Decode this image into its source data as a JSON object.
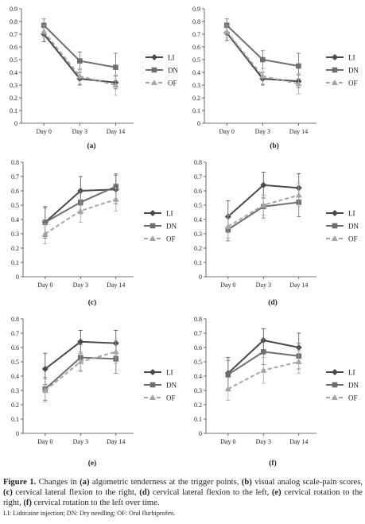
{
  "chart_data": [
    {
      "type": "line",
      "panel_label": "(a)",
      "categories": [
        "Day 0",
        "Day 3",
        "Day 14"
      ],
      "yticks": [
        "0",
        "0.1",
        "0.2",
        "0.3",
        "0.4",
        "0.5",
        "0.6",
        "0.7",
        "0.8",
        "0.9"
      ],
      "ylim": [
        0,
        0.9
      ],
      "series": [
        {
          "name": "LI",
          "values": [
            0.7,
            0.35,
            0.32
          ],
          "errors": [
            0.06,
            0.05,
            0.05
          ]
        },
        {
          "name": "DN",
          "values": [
            0.77,
            0.49,
            0.44
          ],
          "errors": [
            0.05,
            0.07,
            0.11
          ]
        },
        {
          "name": "OF",
          "values": [
            0.72,
            0.37,
            0.3
          ],
          "errors": [
            0.05,
            0.06,
            0.08
          ]
        }
      ]
    },
    {
      "type": "line",
      "panel_label": "(b)",
      "categories": [
        "Day 0",
        "Day 3",
        "Day 14"
      ],
      "yticks": [
        "0",
        "0.1",
        "0.2",
        "0.3",
        "0.4",
        "0.5",
        "0.6",
        "0.7",
        "0.8",
        "0.9"
      ],
      "ylim": [
        0,
        0.9
      ],
      "series": [
        {
          "name": "LI",
          "values": [
            0.71,
            0.35,
            0.33
          ],
          "errors": [
            0.06,
            0.05,
            0.05
          ]
        },
        {
          "name": "DN",
          "values": [
            0.77,
            0.5,
            0.45
          ],
          "errors": [
            0.05,
            0.07,
            0.1
          ]
        },
        {
          "name": "OF",
          "values": [
            0.72,
            0.37,
            0.31
          ],
          "errors": [
            0.05,
            0.06,
            0.08
          ]
        }
      ]
    },
    {
      "type": "line",
      "panel_label": "(c)",
      "categories": [
        "Day 0",
        "Day 3",
        "Day 14"
      ],
      "yticks": [
        "0",
        "0.1",
        "0.2",
        "0.3",
        "0.4",
        "0.5",
        "0.6",
        "0.7",
        "0.8"
      ],
      "ylim": [
        0,
        0.8
      ],
      "series": [
        {
          "name": "LI",
          "values": [
            0.38,
            0.6,
            0.61
          ],
          "errors": [
            0.11,
            0.1,
            0.1
          ]
        },
        {
          "name": "DN",
          "values": [
            0.38,
            0.52,
            0.63
          ],
          "errors": [
            0.1,
            0.08,
            0.09
          ]
        },
        {
          "name": "OF",
          "values": [
            0.3,
            0.46,
            0.54
          ],
          "errors": [
            0.07,
            0.08,
            0.08
          ]
        }
      ]
    },
    {
      "type": "line",
      "panel_label": "(d)",
      "categories": [
        "Day 0",
        "Day 3",
        "Day 14"
      ],
      "yticks": [
        "0",
        "0.1",
        "0.2",
        "0.3",
        "0.4",
        "0.5",
        "0.6",
        "0.7",
        "0.8"
      ],
      "ylim": [
        0,
        0.8
      ],
      "series": [
        {
          "name": "LI",
          "values": [
            0.42,
            0.64,
            0.62
          ],
          "errors": [
            0.11,
            0.09,
            0.1
          ]
        },
        {
          "name": "DN",
          "values": [
            0.33,
            0.49,
            0.52
          ],
          "errors": [
            0.08,
            0.08,
            0.1
          ]
        },
        {
          "name": "OF",
          "values": [
            0.35,
            0.5,
            0.57
          ],
          "errors": [
            0.08,
            0.07,
            0.08
          ]
        }
      ]
    },
    {
      "type": "line",
      "panel_label": "(e)",
      "categories": [
        "Day 0",
        "Day 3",
        "Day 14"
      ],
      "yticks": [
        "0",
        "0.1",
        "0.2",
        "0.3",
        "0.4",
        "0.5",
        "0.6",
        "0.7",
        "0.8"
      ],
      "ylim": [
        0,
        0.8
      ],
      "series": [
        {
          "name": "LI",
          "values": [
            0.45,
            0.64,
            0.63
          ],
          "errors": [
            0.11,
            0.08,
            0.09
          ]
        },
        {
          "name": "DN",
          "values": [
            0.31,
            0.53,
            0.52
          ],
          "errors": [
            0.08,
            0.09,
            0.1
          ]
        },
        {
          "name": "OF",
          "values": [
            0.3,
            0.5,
            0.57
          ],
          "errors": [
            0.08,
            0.07,
            0.08
          ]
        }
      ]
    },
    {
      "type": "line",
      "panel_label": "(f)",
      "categories": [
        "Day 0",
        "Day 3",
        "Day 14"
      ],
      "yticks": [
        "0",
        "0.1",
        "0.2",
        "0.3",
        "0.4",
        "0.5",
        "0.6",
        "0.7",
        "0.8"
      ],
      "ylim": [
        0,
        0.8
      ],
      "series": [
        {
          "name": "LI",
          "values": [
            0.42,
            0.65,
            0.6
          ],
          "errors": [
            0.11,
            0.08,
            0.1
          ]
        },
        {
          "name": "DN",
          "values": [
            0.41,
            0.57,
            0.54
          ],
          "errors": [
            0.1,
            0.09,
            0.09
          ]
        },
        {
          "name": "OF",
          "values": [
            0.31,
            0.44,
            0.5
          ],
          "errors": [
            0.08,
            0.09,
            0.08
          ]
        }
      ]
    }
  ],
  "series_style": {
    "LI": {
      "color": "#4a4a4a",
      "marker": "diamond",
      "dash": false
    },
    "DN": {
      "color": "#6e6e6e",
      "marker": "square",
      "dash": false
    },
    "OF": {
      "color": "#a6a6a6",
      "marker": "triangle",
      "dash": true
    }
  },
  "caption": {
    "lead": "Figure 1.",
    "body_parts": [
      {
        "text": " Changes in ",
        "bold": false
      },
      {
        "text": "(a)",
        "bold": true
      },
      {
        "text": " algometric tenderness at the trigger points, ",
        "bold": false
      },
      {
        "text": "(b)",
        "bold": true
      },
      {
        "text": " visual analog scale-pain scores, ",
        "bold": false
      },
      {
        "text": "(c)",
        "bold": true
      },
      {
        "text": " cervical lateral flexion to the right, ",
        "bold": false
      },
      {
        "text": "(d)",
        "bold": true
      },
      {
        "text": " cervical lateral flexion to the left, ",
        "bold": false
      },
      {
        "text": "(e)",
        "bold": true
      },
      {
        "text": " cervical rotation to the right, ",
        "bold": false
      },
      {
        "text": "(f)",
        "bold": true
      },
      {
        "text": " cervical rotation to the left over time.",
        "bold": false
      }
    ],
    "abbreviations": "LI: Lidocaine injection; DN: Dry needling; OF: Oral flurbiprofen."
  }
}
